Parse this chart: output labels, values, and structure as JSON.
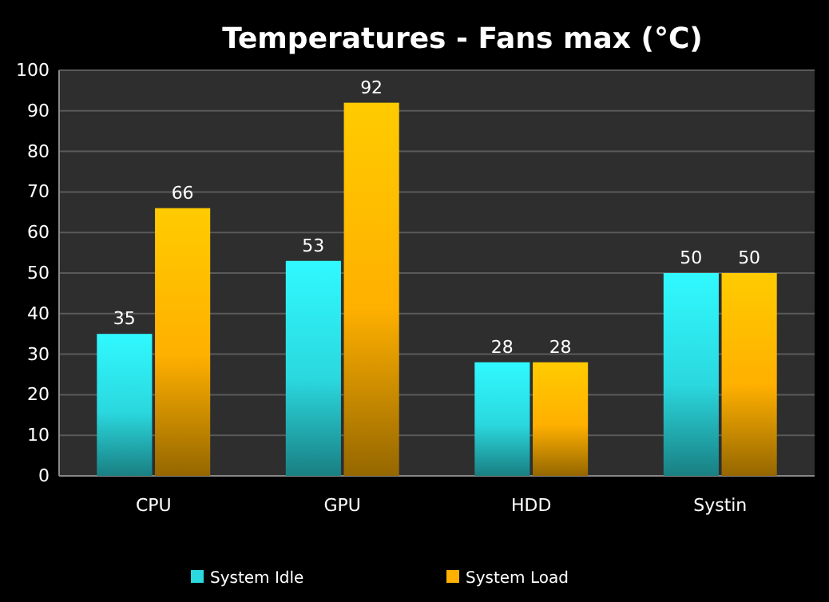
{
  "chart_data": {
    "type": "bar",
    "title": "Temperatures - Fans max (°C)",
    "categories": [
      "CPU",
      "GPU",
      "HDD",
      "Systin"
    ],
    "series": [
      {
        "name": "System Idle",
        "color": "#2ad8de",
        "values": [
          35,
          53,
          28,
          50
        ]
      },
      {
        "name": "System Load",
        "color": "#ffb000",
        "values": [
          66,
          92,
          28,
          50
        ]
      }
    ],
    "ylim": [
      0,
      100
    ],
    "yticks": [
      0,
      10,
      20,
      30,
      40,
      50,
      60,
      70,
      80,
      90,
      100
    ],
    "grid": "y",
    "legend": "bottom",
    "data_labels": true
  }
}
